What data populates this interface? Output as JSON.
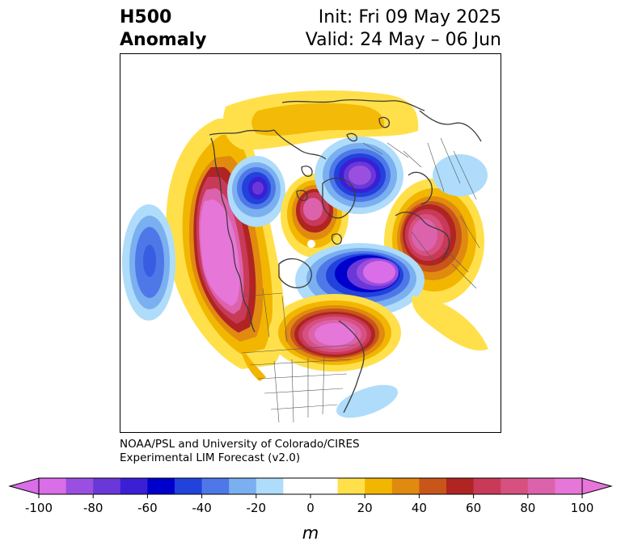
{
  "header": {
    "title_line1": "H500",
    "title_line2": "Anomaly",
    "init": "Init: Fri 09 May 2025",
    "valid": "Valid: 24 May – 06 Jun"
  },
  "credit": {
    "line1": "NOAA/PSL and University of Colorado/CIRES",
    "line2": "Experimental LIM Forecast (v2.0)"
  },
  "colorbar": {
    "unit": "m",
    "ticks": [
      "-100",
      "-80",
      "-60",
      "-40",
      "-20",
      "0",
      "20",
      "40",
      "60",
      "80",
      "100"
    ],
    "colors": [
      "#d96ee8",
      "#9b4fe0",
      "#6a38d8",
      "#3a1fd4",
      "#0000cc",
      "#2242dc",
      "#4e78e8",
      "#7aaff0",
      "#aedcfa",
      "#ffffff",
      "#ffffff",
      "#ffe04a",
      "#f2b600",
      "#e08a10",
      "#c8561a",
      "#b02424",
      "#c83a58",
      "#d65080",
      "#dc62ac",
      "#e676d8"
    ],
    "extend_low_color": "#d96ee8",
    "extend_high_color": "#e676d8"
  },
  "map": {
    "projection": "north-polar-stereographic",
    "anomaly_centers": [
      {
        "region": "NE Pacific / Alaska",
        "sign": "positive",
        "peak": 100
      },
      {
        "region": "Central North Pacific",
        "sign": "negative",
        "peak": -60
      },
      {
        "region": "Alaska-Yukon",
        "sign": "negative",
        "peak": -80
      },
      {
        "region": "Arctic Canada",
        "sign": "positive",
        "peak": 80
      },
      {
        "region": "Siberia / Arctic",
        "sign": "negative",
        "peak": -90
      },
      {
        "region": "Europe / Russia",
        "sign": "positive",
        "peak": 90
      },
      {
        "region": "Greenland / North Atlantic",
        "sign": "negative",
        "peak": -90
      },
      {
        "region": "Eastern Canada / Northeast US",
        "sign": "positive",
        "peak": 100
      },
      {
        "region": "Western Atlantic",
        "sign": "negative",
        "peak": -20
      }
    ]
  }
}
